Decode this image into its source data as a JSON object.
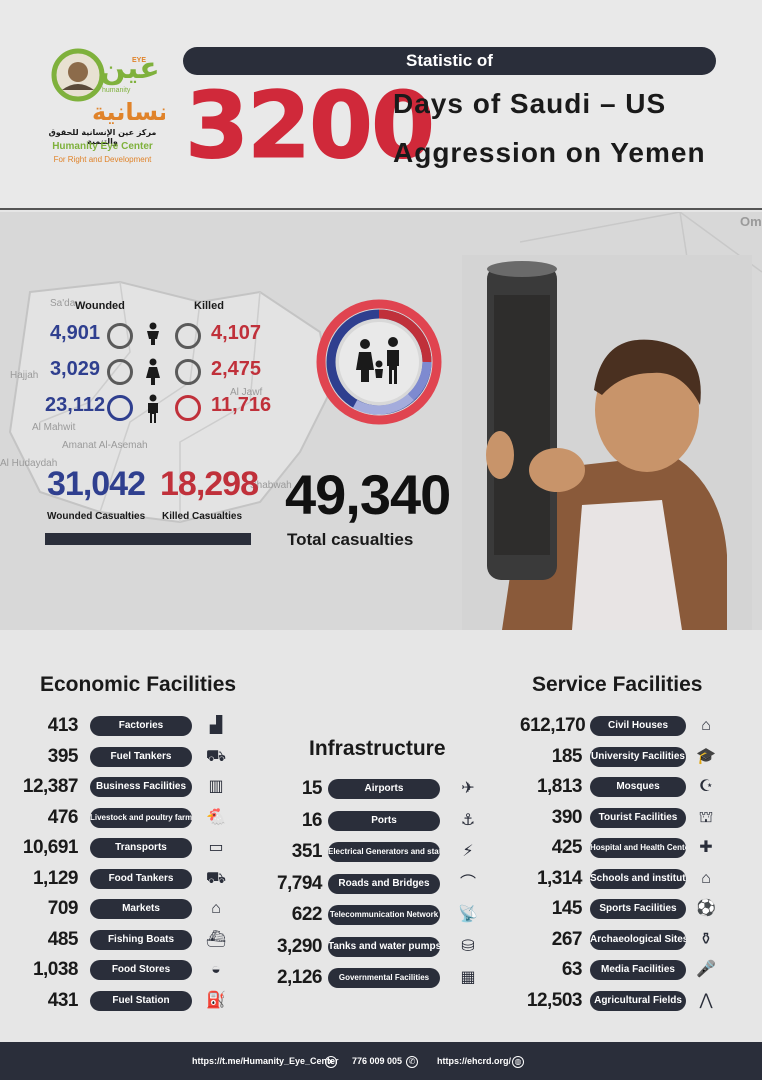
{
  "header": {
    "logo": {
      "arabic_main": "عين الانسانية",
      "arabic_sub": "مركز عين الإنسانية للحقوق والتنمية",
      "english_name": "Humanity Eye Center",
      "english_tagline": "For Right and Development"
    },
    "statistic_label": "Statistic of",
    "days_number": "3200",
    "title_line1": "Days of Saudi – US",
    "title_line2": "Aggression on Yemen"
  },
  "casualties": {
    "wounded_header": "Wounded",
    "killed_header": "Killed",
    "rows": [
      {
        "category_icon": "child-icon",
        "wounded": "4,901",
        "killed": "4,107"
      },
      {
        "category_icon": "woman-icon",
        "wounded": "3,029",
        "killed": "2,475"
      },
      {
        "category_icon": "man-icon",
        "wounded": "23,112",
        "killed": "11,716"
      }
    ],
    "wounded_total": "31,042",
    "wounded_total_label": "Wounded Casualties",
    "killed_total": "18,298",
    "killed_total_label": "Killed Casualties",
    "total": "49,340",
    "total_label": "Total casualties",
    "map_labels": [
      "Sa'da",
      "Hajjah",
      "Al Jawf",
      "Al Mahwit",
      "Amanat Al-Asemah",
      "Al Hudaydah",
      "Shabwah",
      "Om"
    ]
  },
  "economic": {
    "title": "Economic Facilities",
    "items": [
      {
        "value": "413",
        "label": "Factories",
        "icon": "factory-icon"
      },
      {
        "value": "395",
        "label": "Fuel Tankers",
        "icon": "tanker-truck-icon"
      },
      {
        "value": "12,387",
        "label": "Business Facilities",
        "icon": "building-icon"
      },
      {
        "value": "476",
        "label": "Livestock and poultry farms",
        "icon": "chicken-icon"
      },
      {
        "value": "10,691",
        "label": "Transports",
        "icon": "bus-icon"
      },
      {
        "value": "1,129",
        "label": "Food Tankers",
        "icon": "truck-icon"
      },
      {
        "value": "709",
        "label": "Markets",
        "icon": "store-icon"
      },
      {
        "value": "485",
        "label": "Fishing Boats",
        "icon": "boat-icon"
      },
      {
        "value": "1,038",
        "label": "Food Stores",
        "icon": "food-dish-icon"
      },
      {
        "value": "431",
        "label": "Fuel Station",
        "icon": "fuel-pump-icon"
      }
    ]
  },
  "infrastructure": {
    "title": "Infrastructure",
    "items": [
      {
        "value": "15",
        "label": "Airports",
        "icon": "airplane-icon"
      },
      {
        "value": "16",
        "label": "Ports",
        "icon": "port-crane-icon"
      },
      {
        "value": "351",
        "label": "Electrical Generators and stations",
        "icon": "generator-icon"
      },
      {
        "value": "7,794",
        "label": "Roads and Bridges",
        "icon": "bridge-icon"
      },
      {
        "value": "622",
        "label": "Telecommunication Network",
        "icon": "antenna-icon"
      },
      {
        "value": "3,290",
        "label": "Tanks and water pumps",
        "icon": "water-tank-icon"
      },
      {
        "value": "2,126",
        "label": "Governmental Facilities",
        "icon": "government-building-icon"
      }
    ]
  },
  "service": {
    "title": "Service Facilities",
    "items": [
      {
        "value": "612,170",
        "label": "Civil Houses",
        "icon": "houses-icon"
      },
      {
        "value": "185",
        "label": "University Facilities",
        "icon": "graduation-cap-icon"
      },
      {
        "value": "1,813",
        "label": "Mosques",
        "icon": "mosque-icon"
      },
      {
        "value": "390",
        "label": "Tourist Facilities",
        "icon": "monument-icon"
      },
      {
        "value": "425",
        "label": "Hospital and Health Center",
        "icon": "hospital-icon"
      },
      {
        "value": "1,314",
        "label": "Schools and institutes",
        "icon": "school-icon"
      },
      {
        "value": "145",
        "label": "Sports Facilities",
        "icon": "ball-icon"
      },
      {
        "value": "267",
        "label": "Archaeological Sites",
        "icon": "vase-icon"
      },
      {
        "value": "63",
        "label": "Media Facilities",
        "icon": "microphone-icon"
      },
      {
        "value": "12,503",
        "label": "Agricultural Fields",
        "icon": "field-icon"
      }
    ]
  },
  "footer": {
    "telegram": "https://t.me/Humanity_Eye_Center",
    "phone": "776 009 005",
    "website": "https://ehcrd.org/"
  },
  "colors": {
    "dark": "#2a2e3a",
    "wounded_blue": "#2f3f8f",
    "killed_red": "#c0303a",
    "title_red": "#d0293a",
    "logo_green": "#7fb13c",
    "logo_orange": "#e0832a"
  }
}
